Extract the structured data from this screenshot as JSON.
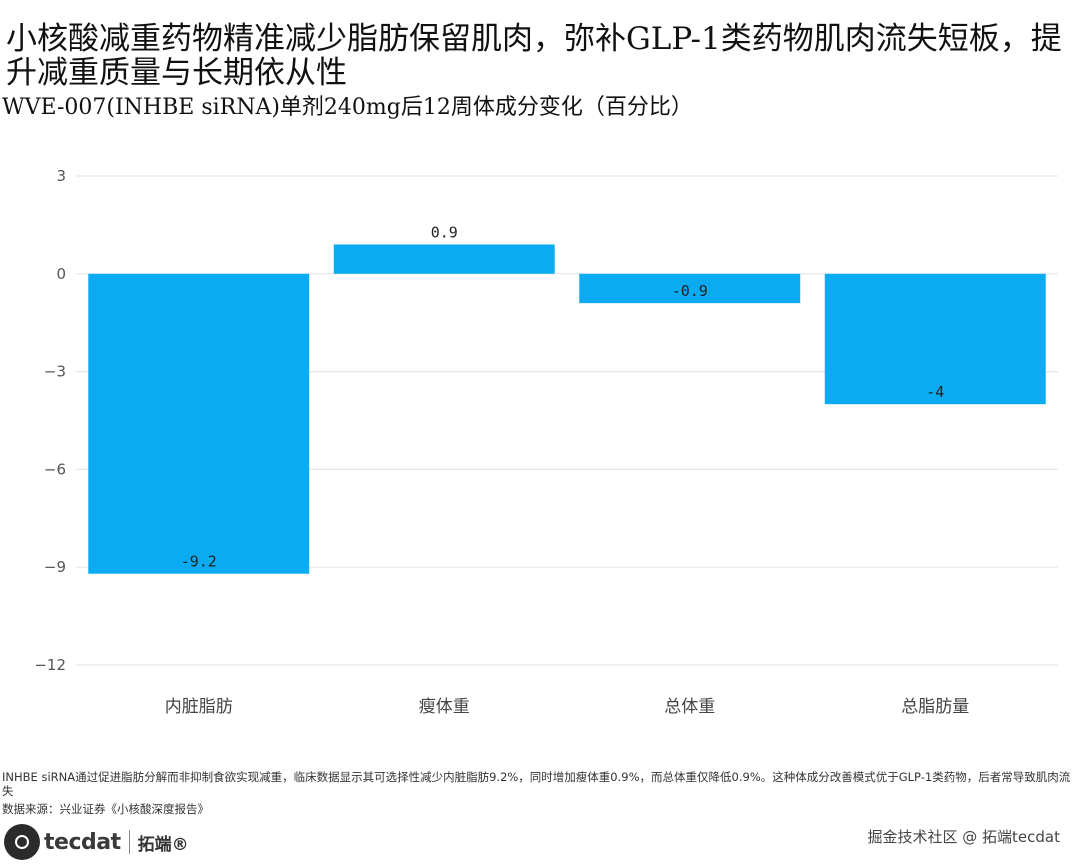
{
  "header": {
    "title": "小核酸减重药物精准减少脂肪保留肌肉，弥补GLP-1类药物肌肉流失短板，提升减重质量与长期依从性",
    "subtitle": "WVE-007(INHBE siRNA)单剂240mg后12周体成分变化（百分比）"
  },
  "chart_data": {
    "type": "bar",
    "categories": [
      "内脏脂肪",
      "瘦体重",
      "总体重",
      "总脂肪量"
    ],
    "values": [
      -9.2,
      0.9,
      -0.9,
      -4
    ],
    "value_labels": [
      "-9.2",
      "0.9",
      "-0.9",
      "-4"
    ],
    "ylim": [
      -12,
      3
    ],
    "yticks": [
      3,
      0,
      -3,
      -6,
      -9,
      -12
    ],
    "ytick_labels": [
      "3",
      "0",
      "−3",
      "−6",
      "−9",
      "−12"
    ],
    "grid": "horizontal",
    "bar_color": "#0aabf0"
  },
  "footer": {
    "note": "INHBE siRNA通过促进脂肪分解而非抑制食欲实现减重，临床数据显示其可选择性减少内脏脂肪9.2%，同时增加瘦体重0.9%，而总体重仅降低0.9%。这种体成分改善模式优于GLP-1类药物，后者常导致肌肉流失",
    "source": "数据来源：兴业证券《小核酸深度报告》",
    "logo_text": "tecdat",
    "logo_cn": "拓端®",
    "watermark": "掘金技术社区 @ 拓端tecdat"
  }
}
